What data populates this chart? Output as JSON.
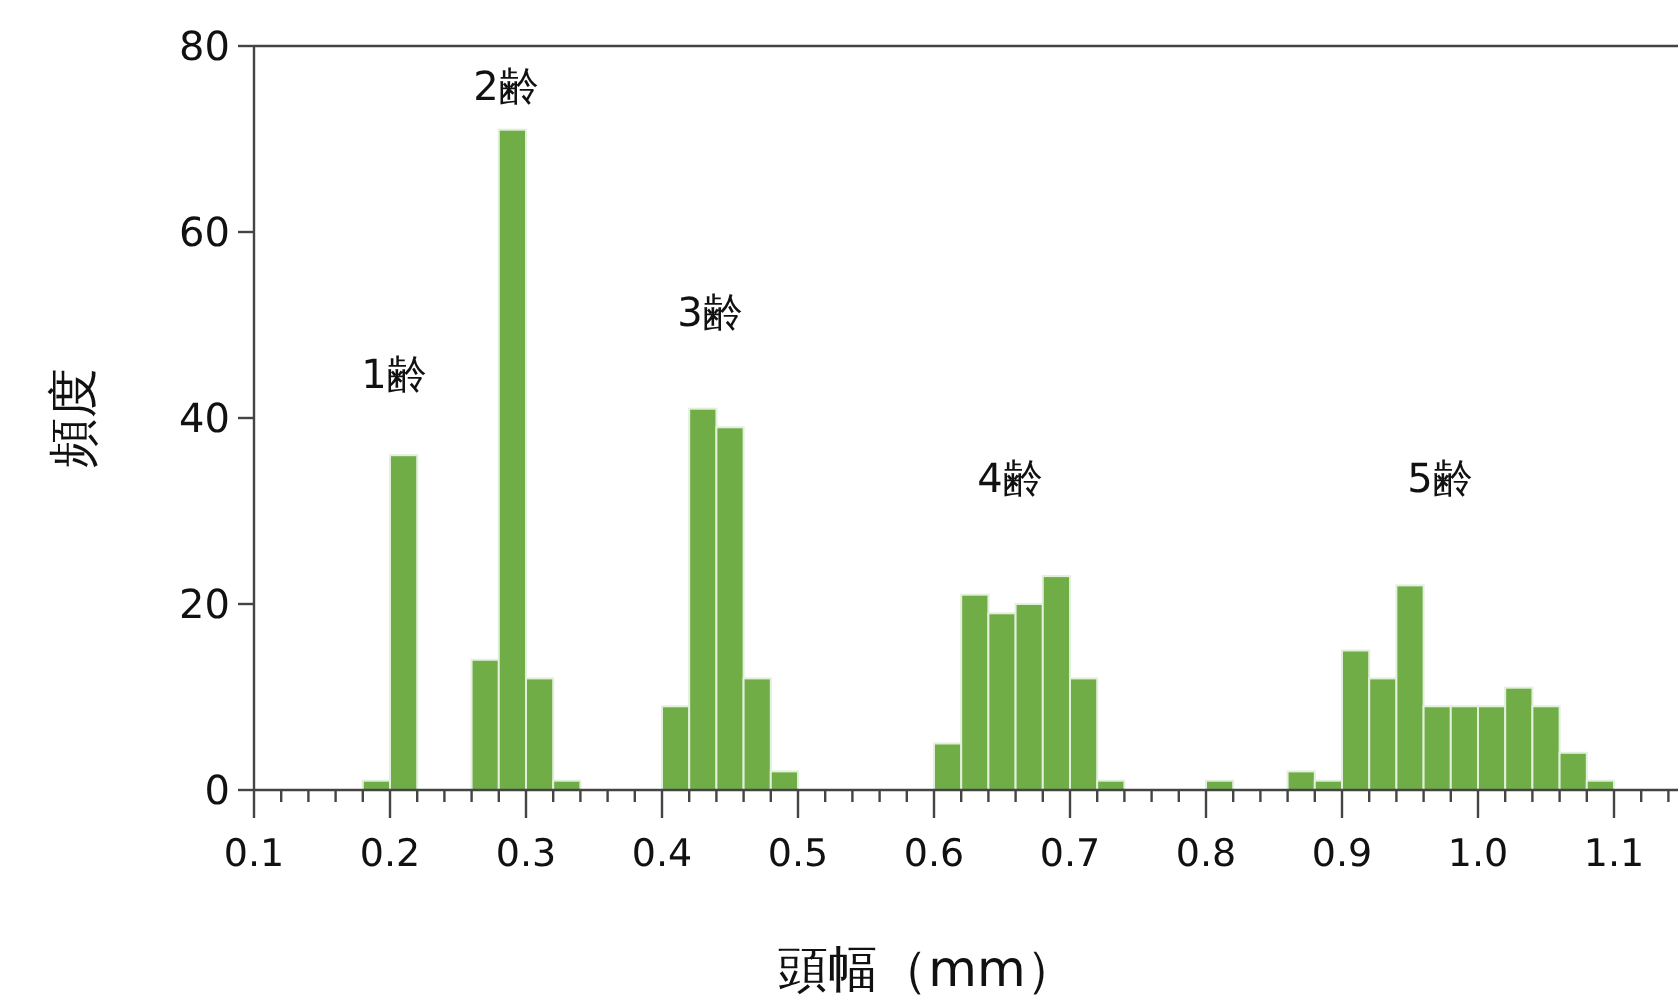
{
  "chart_data": {
    "type": "histogram",
    "xlabel": "頭幅（mm）",
    "ylabel": "頻度",
    "color": "#70ad47",
    "bins": [
      0.18,
      0.2,
      0.22,
      0.24,
      0.26,
      0.28,
      0.3,
      0.32,
      0.34,
      0.36,
      0.38,
      0.4,
      0.42,
      0.44,
      0.46,
      0.48,
      0.5,
      0.52,
      0.54,
      0.56,
      0.58,
      0.6,
      0.62,
      0.64,
      0.66,
      0.68,
      0.7,
      0.72,
      0.74,
      0.76,
      0.78,
      0.8,
      0.82,
      0.84,
      0.86,
      0.88,
      0.9,
      0.92,
      0.94,
      0.96,
      0.98,
      1.0,
      1.02,
      1.04,
      1.06,
      1.08,
      1.1
    ],
    "values": [
      1,
      36,
      0,
      0,
      14,
      71,
      12,
      1,
      0,
      0,
      0,
      9,
      41,
      39,
      12,
      2,
      0,
      0,
      0,
      0,
      0,
      5,
      21,
      19,
      20,
      23,
      12,
      1,
      0,
      0,
      0,
      1,
      0,
      0,
      2,
      1,
      15,
      12,
      22,
      9,
      9,
      9,
      11,
      9,
      4,
      1
    ],
    "xlim": [
      0.1,
      1.15
    ],
    "ylim": [
      0,
      80
    ],
    "xticks": [
      0.1,
      {
        "value": 0.12,
        "label": null
      },
      {
        "value": 0.14,
        "label": null
      },
      {
        "value": 0.16,
        "label": null
      },
      {
        "value": 0.18,
        "label": null
      },
      0.2,
      {
        "value": 0.22,
        "label": null
      },
      {
        "value": 0.24,
        "label": null
      },
      {
        "value": 0.26,
        "label": null
      },
      {
        "value": 0.28,
        "label": null
      },
      0.3,
      {
        "value": 0.32,
        "label": null
      },
      {
        "value": 0.34,
        "label": null
      },
      {
        "value": 0.36,
        "label": null
      },
      {
        "value": 0.38,
        "label": null
      },
      0.4,
      {
        "value": 0.42,
        "label": null
      },
      {
        "value": 0.44,
        "label": null
      },
      {
        "value": 0.46,
        "label": null
      },
      {
        "value": 0.48,
        "label": null
      },
      0.5,
      {
        "value": 0.52,
        "label": null
      },
      {
        "value": 0.54,
        "label": null
      },
      {
        "value": 0.56,
        "label": null
      },
      {
        "value": 0.58,
        "label": null
      },
      0.6,
      {
        "value": 0.62,
        "label": null
      },
      {
        "value": 0.64,
        "label": null
      },
      {
        "value": 0.66,
        "label": null
      },
      {
        "value": 0.68,
        "label": null
      },
      0.7,
      {
        "value": 0.72,
        "label": null
      },
      {
        "value": 0.74,
        "label": null
      },
      {
        "value": 0.76,
        "label": null
      },
      {
        "value": 0.78,
        "label": null
      },
      0.8,
      {
        "value": 0.82,
        "label": null
      },
      {
        "value": 0.84,
        "label": null
      },
      {
        "value": 0.86,
        "label": null
      },
      {
        "value": 0.88,
        "label": null
      },
      0.9,
      {
        "value": 0.92,
        "label": null
      },
      {
        "value": 0.94,
        "label": null
      },
      {
        "value": 0.96,
        "label": null
      },
      {
        "value": 0.98,
        "label": null
      },
      {
        "value": 1.0,
        "label": "1.0"
      },
      {
        "value": 1.02,
        "label": null
      },
      {
        "value": 1.04,
        "label": null
      },
      {
        "value": 1.06,
        "label": null
      },
      {
        "value": 1.08,
        "label": null
      },
      1.1,
      {
        "value": 1.12,
        "label": null
      },
      {
        "value": 1.14,
        "label": null
      }
    ],
    "yticks": [
      0,
      20,
      40,
      60,
      80
    ],
    "grid": false,
    "annotations": [
      "1齢",
      "2齢",
      "3齢",
      "4齢",
      "5齢"
    ]
  }
}
